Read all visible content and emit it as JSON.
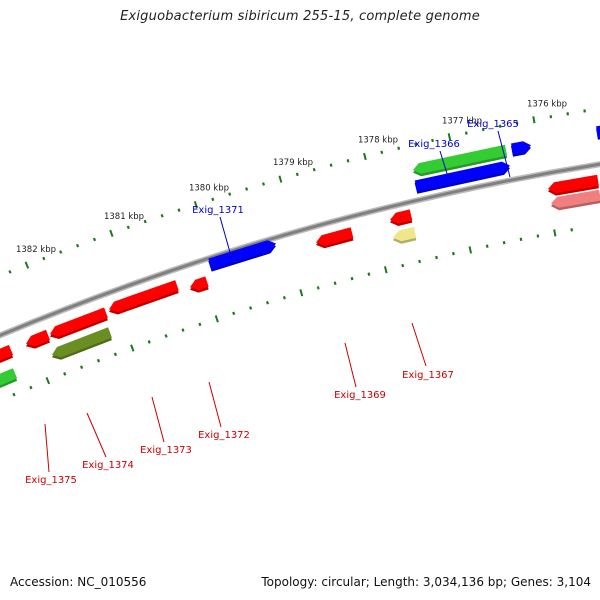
{
  "title": "Exiguobacterium sibiricum 255-15, complete genome",
  "accession": "Accession: NC_010556",
  "topology": "Topology: circular; Length: 3,034,136 bp; Genes: 3,104",
  "colors": {
    "backbone": "#808080",
    "ticks": "#1a7a1a",
    "forward_label": "#0000cc",
    "reverse_label": "#cc0000",
    "red": "#ff0000",
    "blue": "#0000ff",
    "green": "#33cc33",
    "olive": "#6b8e23",
    "pink": "#f08080",
    "yellow": "#f0e68c"
  },
  "scale_labels": [
    "1382 kbp",
    "1381 kbp",
    "1380 kbp",
    "1379 kbp",
    "1378 kbp",
    "1377 kbp",
    "1376 kbp"
  ],
  "gene_labels": [
    {
      "text": "Exig_1365",
      "strand": "forward"
    },
    {
      "text": "Exig_1366",
      "strand": "forward"
    },
    {
      "text": "Exig_1371",
      "strand": "forward"
    },
    {
      "text": "Exig_1367",
      "strand": "reverse"
    },
    {
      "text": "Exig_1369",
      "strand": "reverse"
    },
    {
      "text": "Exig_1372",
      "strand": "reverse"
    },
    {
      "text": "Exig_1373",
      "strand": "reverse"
    },
    {
      "text": "Exig_1374",
      "strand": "reverse"
    },
    {
      "text": "Exig_1375",
      "strand": "reverse"
    }
  ]
}
